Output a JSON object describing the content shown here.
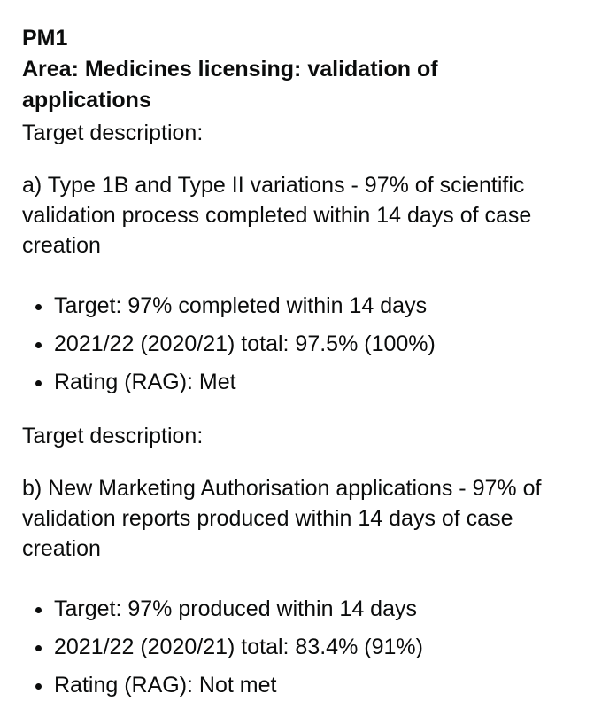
{
  "heading": {
    "code": "PM1",
    "area": "Area: Medicines licensing: validation of applications"
  },
  "sections": [
    {
      "label": "Target description:",
      "description": "a) Type 1B and Type II variations - 97% of scientific validation process completed within 14 days of case creation",
      "bullets": [
        "Target: 97% completed within 14 days",
        "2021/22 (2020/21) total: 97.5% (100%)",
        "Rating (RAG): Met"
      ]
    },
    {
      "label": "Target description:",
      "description": "b) New Marketing Authorisation applications - 97% of validation reports produced within 14 days of case creation",
      "bullets": [
        "Target: 97% produced within 14 days",
        "2021/22 (2020/21) total: 83.4% (91%)",
        "Rating (RAG): Not met"
      ]
    }
  ]
}
